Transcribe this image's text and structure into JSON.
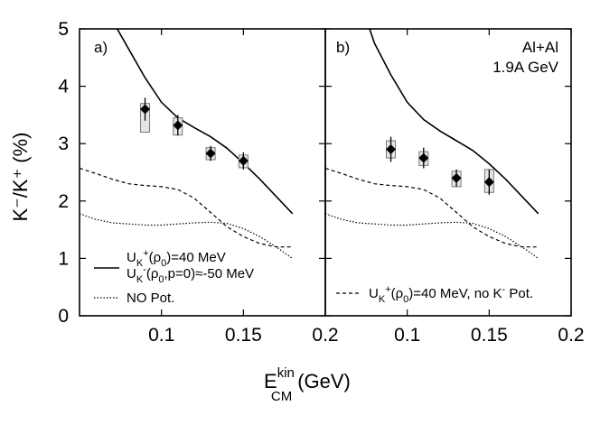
{
  "chart_data": [
    {
      "panel": "a",
      "type": "line",
      "panel_label": "a)",
      "xlim": [
        0.05,
        0.2
      ],
      "ylim": [
        0,
        5
      ],
      "xticks": [
        0.1,
        0.15,
        0.2
      ],
      "xtick_labels": [
        "0.1",
        "0.15",
        "0.2"
      ],
      "yticks": [
        0,
        1,
        2,
        3,
        4,
        5
      ],
      "ytick_labels": [
        "0",
        "1",
        "2",
        "3",
        "4",
        "5"
      ],
      "ylabel": "K⁻/K⁺ (%)",
      "series": [
        {
          "name": "U_K+(ρ0)=40 MeV, U_K-(ρ0,p=0)≈-50 MeV",
          "style": "solid",
          "x": [
            0.073,
            0.08,
            0.09,
            0.1,
            0.11,
            0.12,
            0.13,
            0.14,
            0.15,
            0.16,
            0.17,
            0.18
          ],
          "y": [
            5.0,
            4.65,
            4.15,
            3.72,
            3.45,
            3.28,
            3.12,
            2.92,
            2.66,
            2.38,
            2.08,
            1.78
          ]
        },
        {
          "name": "Dashed",
          "style": "dashed",
          "x": [
            0.05,
            0.06,
            0.07,
            0.08,
            0.09,
            0.1,
            0.11,
            0.12,
            0.13,
            0.14,
            0.15,
            0.16,
            0.17,
            0.18
          ],
          "y": [
            2.57,
            2.48,
            2.38,
            2.3,
            2.27,
            2.25,
            2.2,
            2.05,
            1.8,
            1.55,
            1.38,
            1.26,
            1.2,
            1.2
          ]
        },
        {
          "name": "NO Pot.",
          "style": "dotted",
          "x": [
            0.05,
            0.06,
            0.07,
            0.08,
            0.09,
            0.1,
            0.11,
            0.12,
            0.13,
            0.14,
            0.15,
            0.16,
            0.17,
            0.18
          ],
          "y": [
            1.78,
            1.68,
            1.62,
            1.6,
            1.58,
            1.58,
            1.6,
            1.62,
            1.63,
            1.61,
            1.52,
            1.38,
            1.2,
            1.0
          ]
        }
      ],
      "points": [
        {
          "x": 0.09,
          "y": 3.6,
          "err": 0.2,
          "sys_low": 3.2,
          "sys_high": 3.7
        },
        {
          "x": 0.11,
          "y": 3.32,
          "err": 0.18,
          "sys_low": 3.15,
          "sys_high": 3.45
        },
        {
          "x": 0.13,
          "y": 2.83,
          "err": 0.13,
          "sys_low": 2.72,
          "sys_high": 2.93
        },
        {
          "x": 0.15,
          "y": 2.7,
          "err": 0.15,
          "sys_low": 2.58,
          "sys_high": 2.8
        }
      ],
      "legend": [
        {
          "style": "solid",
          "lines": [
            "U_K⁺(ρ₀)=40 MeV",
            "U_K⁻(ρ₀,p=0)≈-50 MeV"
          ]
        },
        {
          "style": "dotted",
          "lines": [
            "NO Pot."
          ]
        }
      ]
    },
    {
      "panel": "b",
      "type": "line",
      "panel_label": "b)",
      "system": "Al+Al",
      "energy": "1.9A GeV",
      "xlim": [
        0.05,
        0.2
      ],
      "ylim": [
        0,
        5
      ],
      "xticks": [
        0.1,
        0.15,
        0.2
      ],
      "xtick_labels": [
        "0.1",
        "0.15",
        "0.2"
      ],
      "yticks": [
        0,
        1,
        2,
        3,
        4,
        5
      ],
      "series": [
        {
          "name": "Solid",
          "style": "solid",
          "x": [
            0.077,
            0.08,
            0.09,
            0.1,
            0.11,
            0.12,
            0.13,
            0.14,
            0.15,
            0.16,
            0.17,
            0.18
          ],
          "y": [
            5.0,
            4.75,
            4.2,
            3.72,
            3.42,
            3.22,
            3.05,
            2.88,
            2.65,
            2.38,
            2.08,
            1.78
          ]
        },
        {
          "name": "Dashed",
          "style": "dashed",
          "x": [
            0.05,
            0.06,
            0.07,
            0.08,
            0.09,
            0.1,
            0.11,
            0.12,
            0.13,
            0.14,
            0.15,
            0.16,
            0.17,
            0.18
          ],
          "y": [
            2.57,
            2.48,
            2.38,
            2.3,
            2.27,
            2.25,
            2.2,
            2.05,
            1.8,
            1.55,
            1.38,
            1.26,
            1.2,
            1.2
          ]
        },
        {
          "name": "Dotted",
          "style": "dotted",
          "x": [
            0.05,
            0.06,
            0.07,
            0.08,
            0.09,
            0.1,
            0.11,
            0.12,
            0.13,
            0.14,
            0.15,
            0.16,
            0.17,
            0.18
          ],
          "y": [
            1.78,
            1.68,
            1.62,
            1.6,
            1.58,
            1.58,
            1.6,
            1.62,
            1.63,
            1.61,
            1.52,
            1.38,
            1.2,
            1.0
          ]
        }
      ],
      "points": [
        {
          "x": 0.09,
          "y": 2.9,
          "err": 0.22,
          "sys_low": 2.75,
          "sys_high": 3.05
        },
        {
          "x": 0.11,
          "y": 2.75,
          "err": 0.18,
          "sys_low": 2.62,
          "sys_high": 2.86
        },
        {
          "x": 0.13,
          "y": 2.4,
          "err": 0.15,
          "sys_low": 2.25,
          "sys_high": 2.52
        },
        {
          "x": 0.15,
          "y": 2.33,
          "err": 0.22,
          "sys_low": 2.15,
          "sys_high": 2.55
        }
      ],
      "legend": [
        {
          "style": "dashed",
          "lines": [
            "U_K⁺(ρ₀)=40 MeV, no K⁻ Pot."
          ]
        }
      ]
    }
  ],
  "shared_xlabel": {
    "main": "E",
    "sup": "kin",
    "sub": "CM",
    "unit": "(GeV)"
  }
}
